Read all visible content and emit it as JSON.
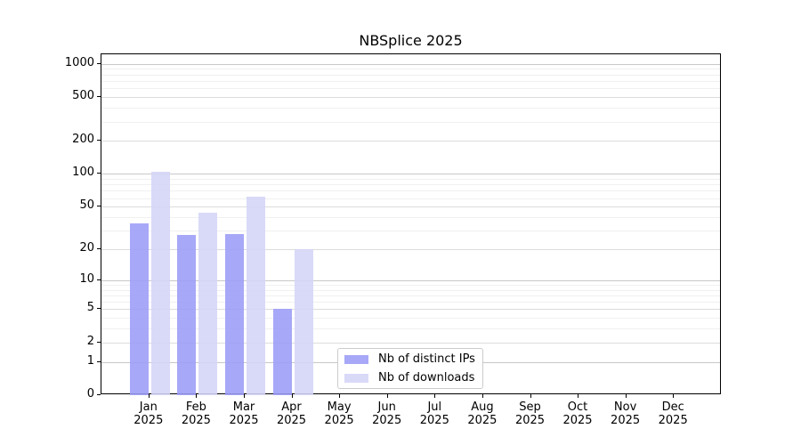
{
  "title": "NBSplice 2025",
  "colors": {
    "bar_distinct_ips": "#a8a8f8",
    "bar_downloads": "#d9d9f8",
    "bar_distinct_ips_rgba": "rgba(156,156,247,0.88)",
    "bar_downloads_rgba": "rgba(212,212,247,0.88)",
    "axis": "#000000",
    "grid_major": "#c8c8c8",
    "grid_mid": "#dcdcdc",
    "grid_minor": "#f0f0f0",
    "legend_border": "#cccccc"
  },
  "chart_data": {
    "type": "bar",
    "title": "NBSplice 2025",
    "categories": [
      "Jan",
      "Feb",
      "Mar",
      "Apr",
      "May",
      "Jun",
      "Jul",
      "Aug",
      "Sep",
      "Oct",
      "Nov",
      "Dec"
    ],
    "year_label": "2025",
    "series": [
      {
        "name": "Nb of distinct IPs",
        "color": "#a8a8f8",
        "values": [
          35,
          27,
          28,
          5,
          0,
          0,
          0,
          0,
          0,
          0,
          0,
          0
        ]
      },
      {
        "name": "Nb of downloads",
        "color": "#d9d9f8",
        "values": [
          105,
          44,
          62,
          20,
          0,
          0,
          0,
          0,
          0,
          0,
          0,
          0
        ]
      }
    ],
    "y_scale": "log1p",
    "y_ticks": [
      0,
      1,
      2,
      5,
      10,
      20,
      50,
      100,
      200,
      500,
      1000
    ],
    "y_minor_ticks": [
      3,
      4,
      6,
      7,
      8,
      9,
      30,
      40,
      60,
      70,
      80,
      90,
      300,
      400,
      600,
      700,
      800,
      900
    ],
    "ylim": [
      0,
      1220
    ],
    "grid": "both",
    "legend_position": "lower center"
  }
}
